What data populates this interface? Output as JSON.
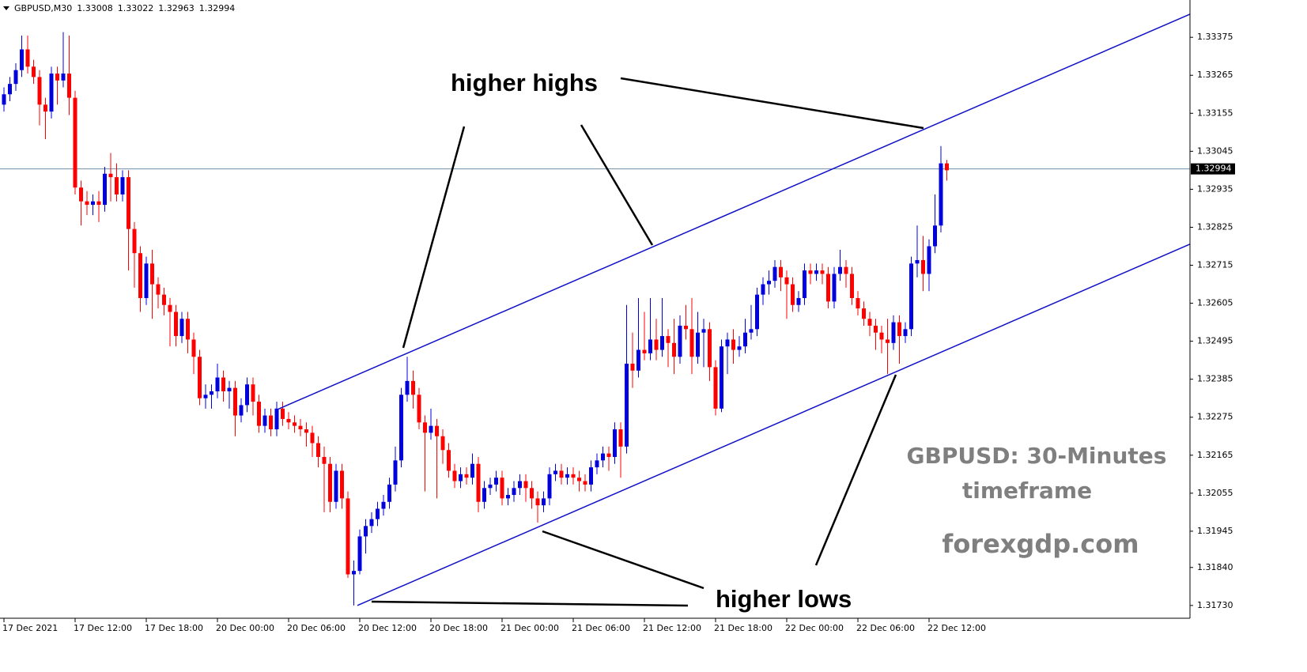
{
  "chart_data": {
    "type": "candlestick",
    "symbol": "GBPUSD,M30",
    "header_ohlc": [
      1.33008,
      1.33022,
      1.32963,
      1.32994
    ],
    "last_price": 1.32994,
    "up_color": "#0000dd",
    "down_color": "#ff0000",
    "ylim": [
      1.31693,
      1.33483
    ],
    "yticks": [
      1.33375,
      1.33265,
      1.33155,
      1.33045,
      1.32935,
      1.32825,
      1.32715,
      1.32605,
      1.32495,
      1.32385,
      1.32275,
      1.32165,
      1.32055,
      1.31945,
      {
        "value": 1.3184,
        "label": "1.31840"
      },
      {
        "value": 1.3173,
        "label": "1.31730"
      }
    ],
    "xticks": [
      {
        "value": 0,
        "label": "17 Dec 2021"
      },
      {
        "value": 12,
        "label": "17 Dec 12:00"
      },
      {
        "value": 24,
        "label": "17 Dec 18:00"
      },
      {
        "value": 36,
        "label": "20 Dec 00:00"
      },
      {
        "value": 48,
        "label": "20 Dec 06:00"
      },
      {
        "value": 60,
        "label": "20 Dec 12:00"
      },
      {
        "value": 72,
        "label": "20 Dec 18:00"
      },
      {
        "value": 84,
        "label": "21 Dec 00:00"
      },
      {
        "value": 96,
        "label": "21 Dec 06:00"
      },
      {
        "value": 108,
        "label": "21 Dec 12:00"
      },
      {
        "value": 120,
        "label": "21 Dec 18:00"
      },
      {
        "value": 132,
        "label": "22 Dec 00:00"
      },
      {
        "value": 144,
        "label": "22 Dec 06:00"
      },
      {
        "value": 156,
        "label": "22 Dec 12:00"
      }
    ],
    "trendlines": [
      {
        "color": "#1010c8",
        "x": [
          46.3,
          200
        ],
        "y": [
          1.32299,
          1.33442
        ]
      },
      {
        "color": "#1010c8",
        "x": [
          59.6,
          200
        ],
        "y": [
          1.3173,
          1.32776
        ]
      }
    ],
    "annotations": [
      "higher highs",
      "higher lows",
      "GBPUSD: 30-Minutes",
      "timeframe",
      "forexgdp.com"
    ],
    "ohlc": [
      [
        1.3318,
        1.3323,
        1.3316,
        1.3321
      ],
      [
        1.3321,
        1.3326,
        1.3319,
        1.3324
      ],
      [
        1.3324,
        1.333,
        1.3322,
        1.3328
      ],
      [
        1.3328,
        1.3338,
        1.3326,
        1.3334
      ],
      [
        1.3334,
        1.3338,
        1.3327,
        1.3329
      ],
      [
        1.3329,
        1.3331,
        1.3324,
        1.3326
      ],
      [
        1.3326,
        1.3328,
        1.3312,
        1.3318
      ],
      [
        1.3318,
        1.332,
        1.3308,
        1.3316
      ],
      [
        1.3316,
        1.3329,
        1.3314,
        1.3327
      ],
      [
        1.3327,
        1.3329,
        1.3318,
        1.3325
      ],
      [
        1.3325,
        1.3339,
        1.3323,
        1.3327
      ],
      [
        1.3327,
        1.3338,
        1.3315,
        1.332
      ],
      [
        1.332,
        1.3322,
        1.3292,
        1.3294
      ],
      [
        1.3294,
        1.3296,
        1.3283,
        1.329
      ],
      [
        1.329,
        1.3293,
        1.3286,
        1.3289
      ],
      [
        1.3289,
        1.3292,
        1.3286,
        1.329
      ],
      [
        1.329,
        1.3293,
        1.3284,
        1.3289
      ],
      [
        1.3289,
        1.33,
        1.3287,
        1.3298
      ],
      [
        1.3298,
        1.3304,
        1.329,
        1.3297
      ],
      [
        1.3297,
        1.3301,
        1.329,
        1.3292
      ],
      [
        1.3292,
        1.3299,
        1.329,
        1.3297
      ],
      [
        1.3297,
        1.3299,
        1.327,
        1.3282
      ],
      [
        1.3282,
        1.3284,
        1.3265,
        1.3275
      ],
      [
        1.3275,
        1.3277,
        1.3258,
        1.3262
      ],
      [
        1.3262,
        1.3274,
        1.326,
        1.3272
      ],
      [
        1.3272,
        1.3276,
        1.3256,
        1.3266
      ],
      [
        1.3266,
        1.3268,
        1.3259,
        1.3263
      ],
      [
        1.3263,
        1.3265,
        1.3257,
        1.326
      ],
      [
        1.326,
        1.3262,
        1.3248,
        1.3258
      ],
      [
        1.3258,
        1.326,
        1.3248,
        1.3251
      ],
      [
        1.3251,
        1.3258,
        1.3249,
        1.3256
      ],
      [
        1.3256,
        1.3258,
        1.3246,
        1.325
      ],
      [
        1.325,
        1.3252,
        1.324,
        1.3245
      ],
      [
        1.3245,
        1.3247,
        1.3231,
        1.3233
      ],
      [
        1.3233,
        1.3237,
        1.323,
        1.3234
      ],
      [
        1.3234,
        1.3237,
        1.323,
        1.3235
      ],
      [
        1.3235,
        1.3243,
        1.3233,
        1.3239
      ],
      [
        1.3239,
        1.3241,
        1.3232,
        1.3235
      ],
      [
        1.3235,
        1.3238,
        1.323,
        1.3236
      ],
      [
        1.3236,
        1.3238,
        1.3222,
        1.3228
      ],
      [
        1.3228,
        1.3233,
        1.3226,
        1.3231
      ],
      [
        1.3231,
        1.3239,
        1.3229,
        1.3237
      ],
      [
        1.3237,
        1.3239,
        1.3228,
        1.3232
      ],
      [
        1.3232,
        1.3234,
        1.3223,
        1.3225
      ],
      [
        1.3225,
        1.323,
        1.3223,
        1.3228
      ],
      [
        1.3228,
        1.323,
        1.3222,
        1.3224
      ],
      [
        1.3224,
        1.3232,
        1.3222,
        1.323
      ],
      [
        1.323,
        1.3232,
        1.3225,
        1.3227
      ],
      [
        1.3227,
        1.3229,
        1.3224,
        1.3226
      ],
      [
        1.3226,
        1.3228,
        1.3223,
        1.3225
      ],
      [
        1.3225,
        1.3227,
        1.3222,
        1.3224
      ],
      [
        1.3224,
        1.3226,
        1.3219,
        1.3223
      ],
      [
        1.3223,
        1.3225,
        1.3216,
        1.322
      ],
      [
        1.322,
        1.3222,
        1.3213,
        1.3216
      ],
      [
        1.3216,
        1.3219,
        1.32,
        1.3214
      ],
      [
        1.3214,
        1.3216,
        1.32,
        1.3203
      ],
      [
        1.3203,
        1.3214,
        1.3201,
        1.3212
      ],
      [
        1.3212,
        1.3214,
        1.3201,
        1.3204
      ],
      [
        1.3204,
        1.3206,
        1.3181,
        1.3182
      ],
      [
        1.3182,
        1.3186,
        1.3173,
        1.3183
      ],
      [
        1.3183,
        1.3195,
        1.3182,
        1.3193
      ],
      [
        1.3193,
        1.3198,
        1.3188,
        1.3196
      ],
      [
        1.3196,
        1.32,
        1.3194,
        1.3198
      ],
      [
        1.3198,
        1.3203,
        1.3196,
        1.3201
      ],
      [
        1.3201,
        1.3205,
        1.3199,
        1.3203
      ],
      [
        1.3203,
        1.321,
        1.3201,
        1.3208
      ],
      [
        1.3208,
        1.3219,
        1.3206,
        1.3215
      ],
      [
        1.3215,
        1.3236,
        1.3213,
        1.3234
      ],
      [
        1.3234,
        1.3245,
        1.3232,
        1.3238
      ],
      [
        1.3238,
        1.3241,
        1.323,
        1.3234
      ],
      [
        1.3234,
        1.3236,
        1.3224,
        1.3226
      ],
      [
        1.3226,
        1.3228,
        1.3206,
        1.3223
      ],
      [
        1.3223,
        1.323,
        1.3221,
        1.3225
      ],
      [
        1.3225,
        1.3227,
        1.3204,
        1.3222
      ],
      [
        1.3222,
        1.3224,
        1.3214,
        1.3218
      ],
      [
        1.3218,
        1.322,
        1.321,
        1.3212
      ],
      [
        1.3212,
        1.3214,
        1.3207,
        1.3209
      ],
      [
        1.3209,
        1.3213,
        1.3207,
        1.3211
      ],
      [
        1.3211,
        1.3213,
        1.3208,
        1.321
      ],
      [
        1.321,
        1.3217,
        1.3208,
        1.3214
      ],
      [
        1.3214,
        1.3216,
        1.32,
        1.3203
      ],
      [
        1.3203,
        1.3209,
        1.3201,
        1.3207
      ],
      [
        1.3207,
        1.321,
        1.3205,
        1.3208
      ],
      [
        1.3208,
        1.3212,
        1.3206,
        1.321
      ],
      [
        1.321,
        1.3212,
        1.3202,
        1.3204
      ],
      [
        1.3204,
        1.3207,
        1.3202,
        1.3205
      ],
      [
        1.3205,
        1.3209,
        1.3203,
        1.3207
      ],
      [
        1.3207,
        1.3211,
        1.3205,
        1.3209
      ],
      [
        1.3209,
        1.3211,
        1.3203,
        1.3207
      ],
      [
        1.3207,
        1.3209,
        1.3201,
        1.3204
      ],
      [
        1.3204,
        1.3206,
        1.3197,
        1.3202
      ],
      [
        1.3202,
        1.3206,
        1.32,
        1.3204
      ],
      [
        1.3204,
        1.3213,
        1.3202,
        1.3211
      ],
      [
        1.3211,
        1.3214,
        1.3209,
        1.3212
      ],
      [
        1.3212,
        1.3214,
        1.3208,
        1.321
      ],
      [
        1.321,
        1.3213,
        1.3208,
        1.3211
      ],
      [
        1.3211,
        1.3213,
        1.3208,
        1.321
      ],
      [
        1.321,
        1.3212,
        1.3206,
        1.3209
      ],
      [
        1.3209,
        1.3211,
        1.3206,
        1.3208
      ],
      [
        1.3208,
        1.3215,
        1.3206,
        1.3213
      ],
      [
        1.3213,
        1.3217,
        1.3211,
        1.3215
      ],
      [
        1.3215,
        1.3219,
        1.3213,
        1.3217
      ],
      [
        1.3217,
        1.3219,
        1.3212,
        1.3216
      ],
      [
        1.3216,
        1.3226,
        1.3214,
        1.3224
      ],
      [
        1.3224,
        1.3226,
        1.321,
        1.3219
      ],
      [
        1.3219,
        1.326,
        1.3217,
        1.3243
      ],
      [
        1.3243,
        1.3252,
        1.3236,
        1.3241
      ],
      [
        1.3241,
        1.3262,
        1.3239,
        1.3247
      ],
      [
        1.3247,
        1.3258,
        1.3244,
        1.3246
      ],
      [
        1.3246,
        1.3262,
        1.3244,
        1.325
      ],
      [
        1.325,
        1.3256,
        1.3244,
        1.3247
      ],
      [
        1.3247,
        1.3262,
        1.3245,
        1.3251
      ],
      [
        1.3251,
        1.3253,
        1.3242,
        1.3249
      ],
      [
        1.3249,
        1.3256,
        1.324,
        1.3245
      ],
      [
        1.3245,
        1.3257,
        1.3243,
        1.3254
      ],
      [
        1.3254,
        1.326,
        1.325,
        1.3253
      ],
      [
        1.3253,
        1.3262,
        1.324,
        1.3245
      ],
      [
        1.3245,
        1.3258,
        1.3243,
        1.3252
      ],
      [
        1.3252,
        1.3256,
        1.3242,
        1.3253
      ],
      [
        1.3253,
        1.3255,
        1.3238,
        1.3242
      ],
      [
        1.3242,
        1.3244,
        1.3228,
        1.323
      ],
      [
        1.323,
        1.325,
        1.3229,
        1.3248
      ],
      [
        1.3248,
        1.3252,
        1.324,
        1.325
      ],
      [
        1.325,
        1.3253,
        1.3243,
        1.3247
      ],
      [
        1.3247,
        1.3251,
        1.3245,
        1.3248
      ],
      [
        1.3248,
        1.3256,
        1.3246,
        1.3252
      ],
      [
        1.3252,
        1.326,
        1.325,
        1.3253
      ],
      [
        1.3253,
        1.3265,
        1.3251,
        1.3263
      ],
      [
        1.3263,
        1.3268,
        1.326,
        1.3266
      ],
      [
        1.3266,
        1.327,
        1.3263,
        1.3267
      ],
      [
        1.3267,
        1.3273,
        1.3265,
        1.3271
      ],
      [
        1.3271,
        1.3273,
        1.3264,
        1.3268
      ],
      [
        1.3268,
        1.327,
        1.3256,
        1.3266
      ],
      [
        1.3266,
        1.3268,
        1.3258,
        1.326
      ],
      [
        1.326,
        1.3264,
        1.3258,
        1.3262
      ],
      [
        1.3262,
        1.3272,
        1.326,
        1.327
      ],
      [
        1.327,
        1.3272,
        1.3266,
        1.3269
      ],
      [
        1.3269,
        1.3272,
        1.3267,
        1.327
      ],
      [
        1.327,
        1.3272,
        1.3266,
        1.3269
      ],
      [
        1.3269,
        1.3271,
        1.3259,
        1.3261
      ],
      [
        1.3261,
        1.3271,
        1.3259,
        1.3269
      ],
      [
        1.3269,
        1.3276,
        1.3267,
        1.3271
      ],
      [
        1.3271,
        1.3273,
        1.3265,
        1.3269
      ],
      [
        1.3269,
        1.3271,
        1.326,
        1.3262
      ],
      [
        1.3262,
        1.3264,
        1.3257,
        1.3259
      ],
      [
        1.3259,
        1.3261,
        1.3254,
        1.3256
      ],
      [
        1.3256,
        1.3258,
        1.3251,
        1.3254
      ],
      [
        1.3254,
        1.3256,
        1.3247,
        1.3252
      ],
      [
        1.3252,
        1.3254,
        1.3246,
        1.325
      ],
      [
        1.325,
        1.3256,
        1.324,
        1.3249
      ],
      [
        1.3249,
        1.3257,
        1.3247,
        1.3255
      ],
      [
        1.3255,
        1.3257,
        1.3243,
        1.3251
      ],
      [
        1.3251,
        1.3255,
        1.3249,
        1.3253
      ],
      [
        1.3253,
        1.3274,
        1.3251,
        1.3272
      ],
      [
        1.3272,
        1.3283,
        1.3268,
        1.3273
      ],
      [
        1.3273,
        1.328,
        1.3264,
        1.3269
      ],
      [
        1.3269,
        1.3279,
        1.3264,
        1.3277
      ],
      [
        1.3277,
        1.3292,
        1.3275,
        1.3283
      ],
      [
        1.3283,
        1.3306,
        1.3281,
        1.3301
      ],
      [
        1.3301,
        1.3302,
        1.3296,
        1.3299
      ]
    ]
  }
}
